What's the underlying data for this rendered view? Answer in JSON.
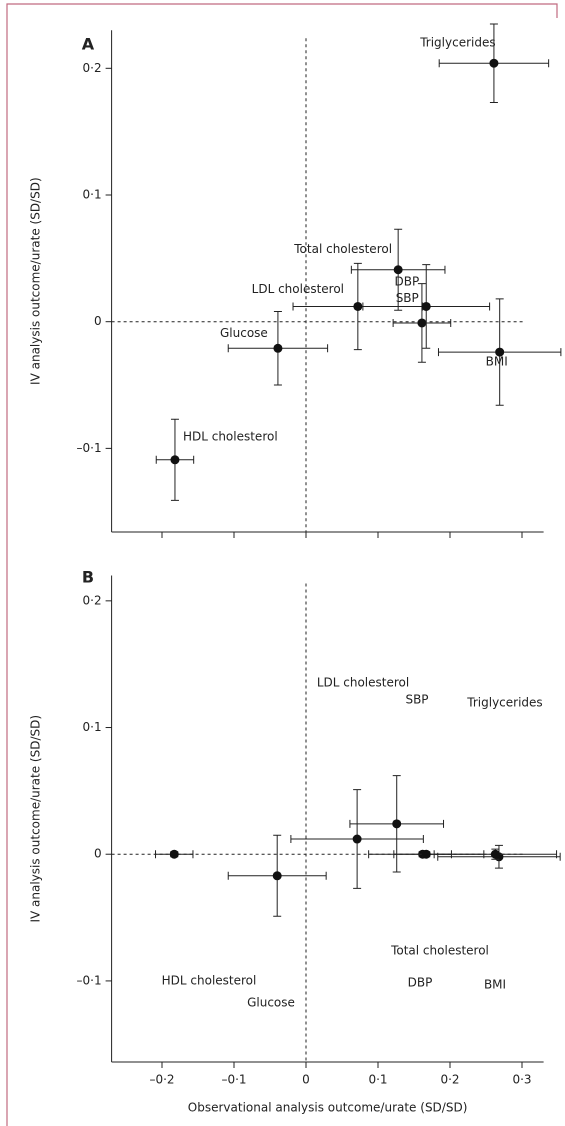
{
  "chart_data": [
    {
      "type": "scatter",
      "panel": "A",
      "xlim": [
        -0.27,
        0.33
      ],
      "ylim": [
        -0.166,
        0.23
      ],
      "yticks": [
        {
          "value": -0.1,
          "label": "–0·1"
        },
        0,
        {
          "value": 0.1,
          "label": "0·1"
        },
        {
          "value": 0.2,
          "label": "0·2"
        }
      ],
      "y_label": "IV analysis outcome/urate (SD/SD)",
      "series": [
        {
          "name": "Triglycerides",
          "x": 0.261,
          "y": 0.204,
          "xerr": 0.076,
          "yerr": 0.031
        },
        {
          "name": "Total cholesterol",
          "x": 0.128,
          "y": 0.041,
          "xerr": 0.065,
          "yerr": 0.032
        },
        {
          "name": "LDL cholesterol",
          "x": 0.072,
          "y": 0.012,
          "xerr": 0.09,
          "yerr": 0.034
        },
        {
          "name": "DBP",
          "x": 0.161,
          "y": -0.001,
          "xerr": 0.04,
          "yerr": 0.031
        },
        {
          "name": "SBP",
          "x": 0.167,
          "y": 0.012,
          "xerr": 0.088,
          "yerr": 0.033
        },
        {
          "name": "BMI",
          "x": 0.269,
          "y": -0.024,
          "xerr": 0.085,
          "yerr": 0.042
        },
        {
          "name": "Glucose",
          "x": -0.039,
          "y": -0.021,
          "xerr": 0.069,
          "yerr": 0.029
        },
        {
          "name": "HDL cholesterol",
          "x": -0.182,
          "y": -0.109,
          "xerr": 0.026,
          "yerr": 0.032
        }
      ]
    },
    {
      "type": "scatter",
      "panel": "B",
      "xlim": [
        -0.27,
        0.33
      ],
      "ylim": [
        -0.164,
        0.22
      ],
      "xticks": [
        {
          "value": -0.2,
          "label": "–0·2"
        },
        {
          "value": -0.1,
          "label": "–0·1"
        },
        0,
        {
          "value": 0.1,
          "label": "0·1"
        },
        {
          "value": 0.2,
          "label": "0·2"
        },
        {
          "value": 0.3,
          "label": "0·3"
        }
      ],
      "yticks": [
        {
          "value": -0.1,
          "label": "–0·1"
        },
        0,
        {
          "value": 0.1,
          "label": "0·1"
        },
        {
          "value": 0.2,
          "label": "0·2"
        }
      ],
      "x_label": "Observational analysis outcome/urate (SD/SD)",
      "y_label": "IV analysis outcome/urate (SD/SD)",
      "series": [
        {
          "name": "Triglycerides",
          "x": 0.268,
          "y": -0.002,
          "xerr": 0.085,
          "yerr": 0.009
        },
        {
          "name": "Total cholesterol",
          "x": 0.126,
          "y": 0.024,
          "xerr": 0.065,
          "yerr": 0.038
        },
        {
          "name": "LDL cholesterol",
          "x": 0.071,
          "y": 0.012,
          "xerr": 0.092,
          "yerr": 0.039
        },
        {
          "name": "DBP",
          "x": 0.162,
          "y": 0,
          "xerr": 0.04,
          "yerr": 0.002
        },
        {
          "name": "SBP",
          "x": 0.167,
          "y": 0,
          "xerr": 0.08,
          "yerr": 0.002
        },
        {
          "name": "BMI",
          "x": 0.263,
          "y": 0,
          "xerr": 0.085,
          "yerr": 0.004
        },
        {
          "name": "Glucose",
          "x": -0.04,
          "y": -0.017,
          "xerr": 0.068,
          "yerr": 0.032
        },
        {
          "name": "HDL cholesterol",
          "x": -0.183,
          "y": 0,
          "xerr": 0.026,
          "yerr": 0.002
        }
      ]
    }
  ]
}
